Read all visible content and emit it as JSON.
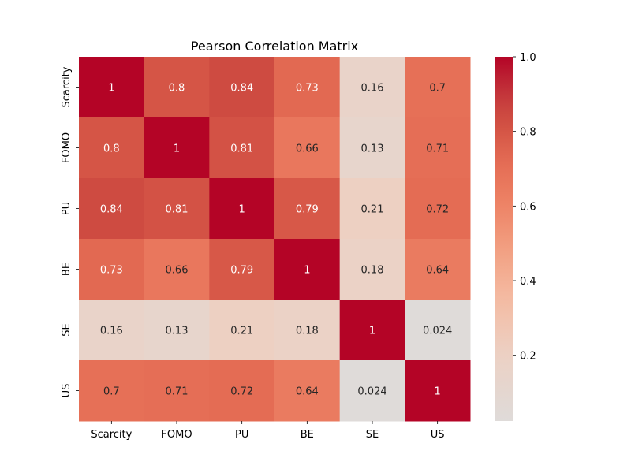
{
  "chart_data": {
    "type": "heatmap",
    "title": "Pearson Correlation Matrix",
    "xlabel": "",
    "ylabel": "",
    "x_categories": [
      "Scarcity",
      "FOMO",
      "PU",
      "BE",
      "SE",
      "US"
    ],
    "y_categories": [
      "Scarcity",
      "FOMO",
      "PU",
      "BE",
      "SE",
      "US"
    ],
    "values": [
      [
        1,
        0.8,
        0.84,
        0.73,
        0.16,
        0.7
      ],
      [
        0.8,
        1,
        0.81,
        0.66,
        0.13,
        0.71
      ],
      [
        0.84,
        0.81,
        1,
        0.79,
        0.21,
        0.72
      ],
      [
        0.73,
        0.66,
        0.79,
        1,
        0.18,
        0.64
      ],
      [
        0.16,
        0.13,
        0.21,
        0.18,
        1,
        0.024
      ],
      [
        0.7,
        0.71,
        0.72,
        0.64,
        0.024,
        1
      ]
    ],
    "value_labels": [
      [
        "1",
        "0.8",
        "0.84",
        "0.73",
        "0.16",
        "0.7"
      ],
      [
        "0.8",
        "1",
        "0.81",
        "0.66",
        "0.13",
        "0.71"
      ],
      [
        "0.84",
        "0.81",
        "1",
        "0.79",
        "0.21",
        "0.72"
      ],
      [
        "0.73",
        "0.66",
        "0.79",
        "1",
        "0.18",
        "0.64"
      ],
      [
        "0.16",
        "0.13",
        "0.21",
        "0.18",
        "1",
        "0.024"
      ],
      [
        "0.7",
        "0.71",
        "0.72",
        "0.64",
        "0.024",
        "1"
      ]
    ],
    "colorbar": {
      "vmin": 0.024,
      "vmax": 1.0,
      "ticks": [
        0.2,
        0.4,
        0.6,
        0.8,
        1.0
      ],
      "tick_labels": [
        "0.2",
        "0.4",
        "0.6",
        "0.8",
        "1.0"
      ],
      "colormap": "coolwarm",
      "center": 0
    }
  }
}
